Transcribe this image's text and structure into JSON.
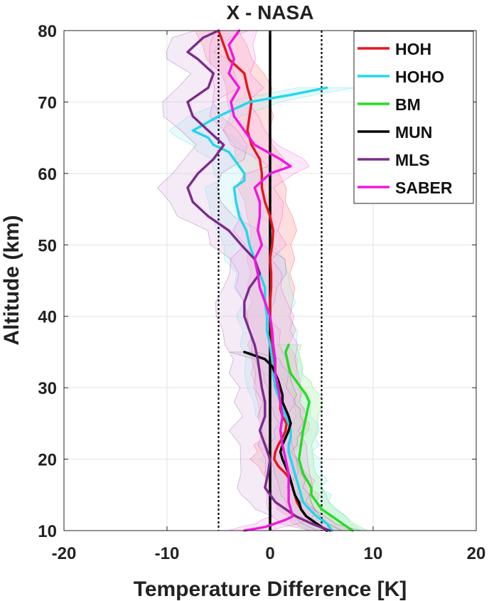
{
  "chart_data": {
    "type": "line",
    "title": "X - NASA",
    "xlabel": "Temperature Difference [K]",
    "ylabel": "Altitude (km)",
    "xlim": [
      -20,
      20
    ],
    "ylim": [
      10,
      80
    ],
    "xticks": [
      -20,
      -10,
      0,
      10,
      20
    ],
    "yticks": [
      10,
      20,
      30,
      40,
      50,
      60,
      70,
      80
    ],
    "grid": true,
    "legend_position": "top-right",
    "reference_lines": [
      {
        "x": -5,
        "style": "dotted",
        "color": "#000000"
      },
      {
        "x": 0,
        "style": "solid",
        "color": "#000000"
      },
      {
        "x": 5,
        "style": "dotted",
        "color": "#000000"
      }
    ],
    "series": [
      {
        "name": "HOH",
        "color": "#e8151b",
        "band_color": "#ff9999",
        "points": [
          [
            5.5,
            10
          ],
          [
            4.5,
            11
          ],
          [
            3.5,
            12
          ],
          [
            3.0,
            13
          ],
          [
            2.6,
            14
          ],
          [
            2.4,
            15
          ],
          [
            2.2,
            16
          ],
          [
            2.0,
            17
          ],
          [
            1.5,
            18
          ],
          [
            0.8,
            19
          ],
          [
            0.4,
            20
          ],
          [
            0.5,
            21
          ],
          [
            0.8,
            22
          ],
          [
            1.2,
            23
          ],
          [
            1.5,
            24
          ],
          [
            1.6,
            25
          ],
          [
            1.2,
            26
          ],
          [
            1.0,
            27
          ],
          [
            1.0,
            28
          ],
          [
            0.8,
            29
          ],
          [
            0.7,
            30
          ],
          [
            0.5,
            32
          ],
          [
            0.3,
            34
          ],
          [
            0.2,
            36
          ],
          [
            0.1,
            38
          ],
          [
            0.0,
            40
          ],
          [
            0.0,
            42
          ],
          [
            0.1,
            44
          ],
          [
            0.1,
            46
          ],
          [
            0.0,
            48
          ],
          [
            0.2,
            50
          ],
          [
            0.3,
            52
          ],
          [
            0.0,
            54
          ],
          [
            -0.5,
            56
          ],
          [
            -0.8,
            58
          ],
          [
            -0.8,
            60
          ],
          [
            -1.0,
            62
          ],
          [
            -1.8,
            64
          ],
          [
            -2.2,
            66
          ],
          [
            -2.0,
            68
          ],
          [
            -1.8,
            70
          ],
          [
            -2.2,
            72
          ],
          [
            -2.5,
            74
          ],
          [
            -4.0,
            76
          ],
          [
            -4.5,
            78
          ],
          [
            -5.0,
            80
          ]
        ],
        "spread": 2.0
      },
      {
        "name": "HOHO",
        "color": "#20d8ec",
        "band_color": "#b8eef4",
        "points": [
          [
            6.0,
            10
          ],
          [
            5.5,
            11
          ],
          [
            4.5,
            12
          ],
          [
            3.8,
            13
          ],
          [
            3.2,
            14
          ],
          [
            3.0,
            15
          ],
          [
            2.8,
            16
          ],
          [
            2.6,
            17
          ],
          [
            2.4,
            18
          ],
          [
            2.2,
            19
          ],
          [
            2.0,
            20
          ],
          [
            1.8,
            21
          ],
          [
            1.8,
            22
          ],
          [
            2.0,
            23
          ],
          [
            2.0,
            24
          ],
          [
            1.8,
            25
          ],
          [
            1.5,
            26
          ],
          [
            1.0,
            28
          ],
          [
            0.5,
            30
          ],
          [
            0.3,
            32
          ],
          [
            0.2,
            34
          ],
          [
            0.0,
            36
          ],
          [
            -0.3,
            38
          ],
          [
            -0.3,
            40
          ],
          [
            -0.5,
            42
          ],
          [
            -0.5,
            44
          ],
          [
            -1.0,
            46
          ],
          [
            -1.5,
            48
          ],
          [
            -2.0,
            50
          ],
          [
            -2.3,
            52
          ],
          [
            -3.0,
            54
          ],
          [
            -3.3,
            56
          ],
          [
            -3.5,
            58
          ],
          [
            -2.5,
            59
          ],
          [
            -2.5,
            60
          ],
          [
            -3.5,
            62
          ],
          [
            -4.0,
            63
          ],
          [
            -5.5,
            64
          ],
          [
            -6.0,
            65
          ],
          [
            -7.5,
            66
          ],
          [
            -5.0,
            68
          ],
          [
            -2.0,
            70
          ],
          [
            2.0,
            71
          ],
          [
            5.5,
            72
          ]
        ],
        "spread": 2.5
      },
      {
        "name": "BM",
        "color": "#22dd22",
        "band_color": "#aaf0aa",
        "points": [
          [
            8.0,
            10
          ],
          [
            7.0,
            11
          ],
          [
            6.0,
            12
          ],
          [
            5.0,
            13
          ],
          [
            4.5,
            14
          ],
          [
            4.0,
            15
          ],
          [
            4.0,
            16
          ],
          [
            3.6,
            17
          ],
          [
            3.2,
            18
          ],
          [
            3.0,
            19
          ],
          [
            2.8,
            20
          ],
          [
            3.0,
            22
          ],
          [
            3.2,
            24
          ],
          [
            3.5,
            26
          ],
          [
            3.8,
            28
          ],
          [
            3.5,
            29
          ],
          [
            3.0,
            30
          ],
          [
            2.5,
            31
          ],
          [
            2.0,
            32
          ],
          [
            1.8,
            33
          ],
          [
            1.5,
            35
          ],
          [
            1.8,
            36
          ]
        ],
        "spread": 1.2
      },
      {
        "name": "MUN",
        "color": "#000000",
        "band_color": "#c8c8c8",
        "points": [
          [
            5.5,
            10
          ],
          [
            4.5,
            11
          ],
          [
            3.5,
            12
          ],
          [
            3.0,
            13
          ],
          [
            2.8,
            14
          ],
          [
            2.4,
            15
          ],
          [
            2.2,
            16
          ],
          [
            2.0,
            17
          ],
          [
            1.8,
            18
          ],
          [
            1.5,
            19
          ],
          [
            1.2,
            20
          ],
          [
            1.0,
            21
          ],
          [
            1.2,
            22
          ],
          [
            1.5,
            23
          ],
          [
            1.8,
            24
          ],
          [
            2.0,
            25
          ],
          [
            1.8,
            26
          ],
          [
            1.5,
            27
          ],
          [
            1.2,
            28
          ],
          [
            1.2,
            29
          ],
          [
            1.0,
            30
          ],
          [
            0.8,
            31
          ],
          [
            0.5,
            32
          ],
          [
            0.2,
            33
          ],
          [
            -0.5,
            34
          ],
          [
            -2.5,
            35
          ]
        ],
        "spread": 1.2
      },
      {
        "name": "MLS",
        "color": "#7c2a8c",
        "band_color": "#dcc2e6",
        "points": [
          [
            5.8,
            10
          ],
          [
            4.0,
            11
          ],
          [
            2.5,
            12
          ],
          [
            1.5,
            13
          ],
          [
            0.5,
            14
          ],
          [
            0.0,
            15
          ],
          [
            -0.5,
            16
          ],
          [
            -0.2,
            18
          ],
          [
            0.0,
            20
          ],
          [
            -0.5,
            22
          ],
          [
            -1.0,
            24
          ],
          [
            -0.5,
            26
          ],
          [
            -0.5,
            28
          ],
          [
            -0.8,
            30
          ],
          [
            -1.0,
            32
          ],
          [
            -1.2,
            34
          ],
          [
            -1.5,
            36
          ],
          [
            -2.0,
            38
          ],
          [
            -2.5,
            40
          ],
          [
            -2.5,
            42
          ],
          [
            -2.0,
            44
          ],
          [
            -1.0,
            46
          ],
          [
            -1.5,
            48
          ],
          [
            -2.8,
            50
          ],
          [
            -4.0,
            52
          ],
          [
            -6.0,
            54
          ],
          [
            -7.5,
            56
          ],
          [
            -8.0,
            58
          ],
          [
            -7.0,
            60
          ],
          [
            -5.5,
            62
          ],
          [
            -4.5,
            64
          ],
          [
            -6.0,
            66
          ],
          [
            -7.5,
            68
          ],
          [
            -8.0,
            70
          ],
          [
            -6.0,
            72
          ],
          [
            -5.5,
            74
          ],
          [
            -7.0,
            76
          ],
          [
            -8.0,
            77
          ],
          [
            -6.5,
            79
          ],
          [
            -5.0,
            80
          ]
        ],
        "spread": 2.5
      },
      {
        "name": "SABER",
        "color": "#f016e0",
        "band_color": "#f5b8e8",
        "points": [
          [
            -2.5,
            10
          ],
          [
            -0.5,
            10.5
          ],
          [
            0.5,
            11
          ],
          [
            1.5,
            11.5
          ],
          [
            2.2,
            12
          ],
          [
            2.0,
            13
          ],
          [
            1.8,
            14
          ],
          [
            1.8,
            16
          ],
          [
            1.8,
            18
          ],
          [
            1.5,
            20
          ],
          [
            1.2,
            22
          ],
          [
            1.0,
            24
          ],
          [
            1.2,
            26
          ],
          [
            1.0,
            28
          ],
          [
            0.8,
            30
          ],
          [
            0.5,
            32
          ],
          [
            0.5,
            34
          ],
          [
            0.3,
            36
          ],
          [
            0.2,
            38
          ],
          [
            0.0,
            40
          ],
          [
            -0.5,
            42
          ],
          [
            -1.0,
            44
          ],
          [
            -1.2,
            46
          ],
          [
            -1.5,
            48
          ],
          [
            -0.8,
            50
          ],
          [
            -1.2,
            52
          ],
          [
            -1.0,
            54
          ],
          [
            -1.0,
            56
          ],
          [
            -1.5,
            58
          ],
          [
            0.0,
            60
          ],
          [
            2.0,
            61
          ],
          [
            1.0,
            62
          ],
          [
            -1.5,
            64
          ],
          [
            -2.5,
            66
          ],
          [
            -3.5,
            68
          ],
          [
            -3.8,
            70
          ],
          [
            -3.0,
            72
          ],
          [
            -4.0,
            74
          ],
          [
            -3.5,
            76
          ],
          [
            -4.0,
            78
          ],
          [
            -3.0,
            80
          ]
        ],
        "spread": 2.0
      }
    ]
  }
}
